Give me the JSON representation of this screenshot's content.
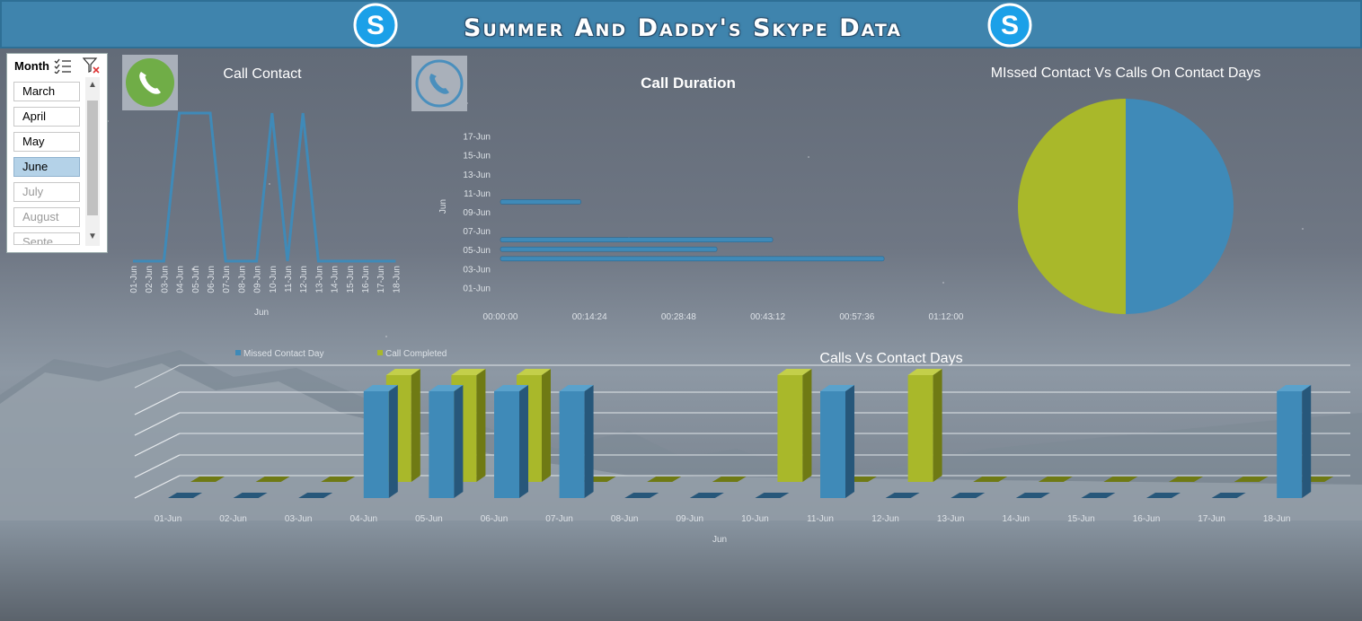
{
  "header": {
    "title": "Summer And Daddy's Skype Data"
  },
  "colors": {
    "blue": "#3f8ab8",
    "green": "#a9b82a",
    "header": "#3f84ad"
  },
  "slicer": {
    "label": "Month",
    "items": [
      {
        "label": "March",
        "state": "normal"
      },
      {
        "label": "April",
        "state": "normal"
      },
      {
        "label": "May",
        "state": "normal"
      },
      {
        "label": "June",
        "state": "selected"
      },
      {
        "label": "July",
        "state": "dim"
      },
      {
        "label": "August",
        "state": "dim"
      },
      {
        "label": "Septe...",
        "state": "dim"
      }
    ]
  },
  "chart_data": [
    {
      "type": "line",
      "title": "Call Contact",
      "xlabel": "Jun",
      "categories": [
        "01-Jun",
        "02-Jun",
        "03-Jun",
        "04-Jun",
        "05-Jun",
        "06-Jun",
        "07-Jun",
        "08-Jun",
        "09-Jun",
        "10-Jun",
        "11-Jun",
        "12-Jun",
        "13-Jun",
        "14-Jun",
        "15-Jun",
        "16-Jun",
        "17-Jun",
        "18-Jun"
      ],
      "values": [
        0,
        0,
        0,
        1,
        1,
        1,
        0,
        0,
        0,
        1,
        0,
        1,
        0,
        0,
        0,
        0,
        0,
        0
      ],
      "ylim": [
        0,
        1
      ],
      "grid": false
    },
    {
      "type": "bar",
      "orientation": "horizontal",
      "title": "Call Duration",
      "ylabel": "Jun",
      "y_tick_labels": [
        "01-Jun",
        "03-Jun",
        "05-Jun",
        "07-Jun",
        "09-Jun",
        "11-Jun",
        "13-Jun",
        "15-Jun",
        "17-Jun"
      ],
      "x_tick_labels": [
        "00:00:00",
        "00:14:24",
        "00:28:48",
        "00:43:12",
        "00:57:36",
        "01:12:00"
      ],
      "xlim_minutes": [
        0,
        72
      ],
      "ylim_day": [
        0,
        18
      ],
      "bars": [
        {
          "day": 4,
          "label": "04-Jun",
          "minutes": 62
        },
        {
          "day": 5,
          "label": "05-Jun",
          "minutes": 35
        },
        {
          "day": 6,
          "label": "06-Jun",
          "minutes": 44
        },
        {
          "day": 10,
          "label": "10-Jun",
          "minutes": 13
        }
      ]
    },
    {
      "type": "pie",
      "title": "MIssed Contact Vs Calls On Contact Days",
      "slices": [
        {
          "name": "Missed Contact Day",
          "value": 50,
          "color": "#3f8ab8"
        },
        {
          "name": "Call Completed",
          "value": 50,
          "color": "#a9b82a"
        }
      ]
    },
    {
      "type": "bar",
      "style": "3d-clustered",
      "title": "Calls Vs Contact Days",
      "xlabel": "Jun",
      "legend_position": "top-left",
      "categories": [
        "01-Jun",
        "02-Jun",
        "03-Jun",
        "04-Jun",
        "05-Jun",
        "06-Jun",
        "07-Jun",
        "08-Jun",
        "09-Jun",
        "10-Jun",
        "11-Jun",
        "12-Jun",
        "13-Jun",
        "14-Jun",
        "15-Jun",
        "16-Jun",
        "17-Jun",
        "18-Jun"
      ],
      "series": [
        {
          "name": "Missed Contact Day",
          "color": "#3f8ab8",
          "values": [
            0,
            0,
            0,
            1,
            1,
            1,
            1,
            0,
            0,
            0,
            1,
            0,
            0,
            0,
            0,
            0,
            0,
            1
          ]
        },
        {
          "name": "Call Completed",
          "color": "#a9b82a",
          "values": [
            0,
            0,
            0,
            1,
            1,
            1,
            0,
            0,
            0,
            1,
            0,
            1,
            0,
            0,
            0,
            0,
            0,
            0
          ]
        }
      ],
      "ylim": [
        0,
        1
      ]
    }
  ]
}
